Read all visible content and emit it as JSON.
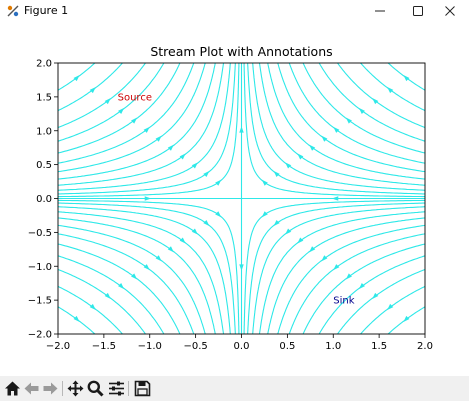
{
  "window": {
    "title": "Figure 1",
    "app_icon": "matplotlib-figure-icon",
    "controls": [
      "minimize-icon",
      "maximize-icon",
      "close-icon"
    ]
  },
  "toolbar": {
    "buttons": [
      "home-icon",
      "back-arrow-icon",
      "forward-arrow-icon",
      "pan-icon",
      "zoom-icon",
      "configure-subplots-icon",
      "save-icon"
    ]
  },
  "chart_data": {
    "type": "streamplot",
    "title": "Stream Plot with Annotations",
    "xlabel": "",
    "ylabel": "",
    "xlim": [
      -2.0,
      2.0
    ],
    "ylim": [
      -2.0,
      2.0
    ],
    "xticks": [
      "−2.0",
      "−1.5",
      "−1.0",
      "−0.5",
      "0.0",
      "0.5",
      "1.0",
      "1.5",
      "2.0"
    ],
    "yticks": [
      "−2.0",
      "−1.5",
      "−1.0",
      "−0.5",
      "0.0",
      "0.5",
      "1.0",
      "1.5",
      "2.0"
    ],
    "tick_values": [
      -2.0,
      -1.5,
      -1.0,
      -0.5,
      0.0,
      0.5,
      1.0,
      1.5,
      2.0
    ],
    "field": {
      "u": "-x",
      "v": "y"
    },
    "line_color": "#2ee8e8",
    "grid": false,
    "annotations": [
      {
        "text": "Source",
        "x": -1.35,
        "y": 1.5,
        "color": "#cc0000"
      },
      {
        "text": "Sink",
        "x": 1.0,
        "y": -1.5,
        "color": "#00008b"
      }
    ]
  }
}
